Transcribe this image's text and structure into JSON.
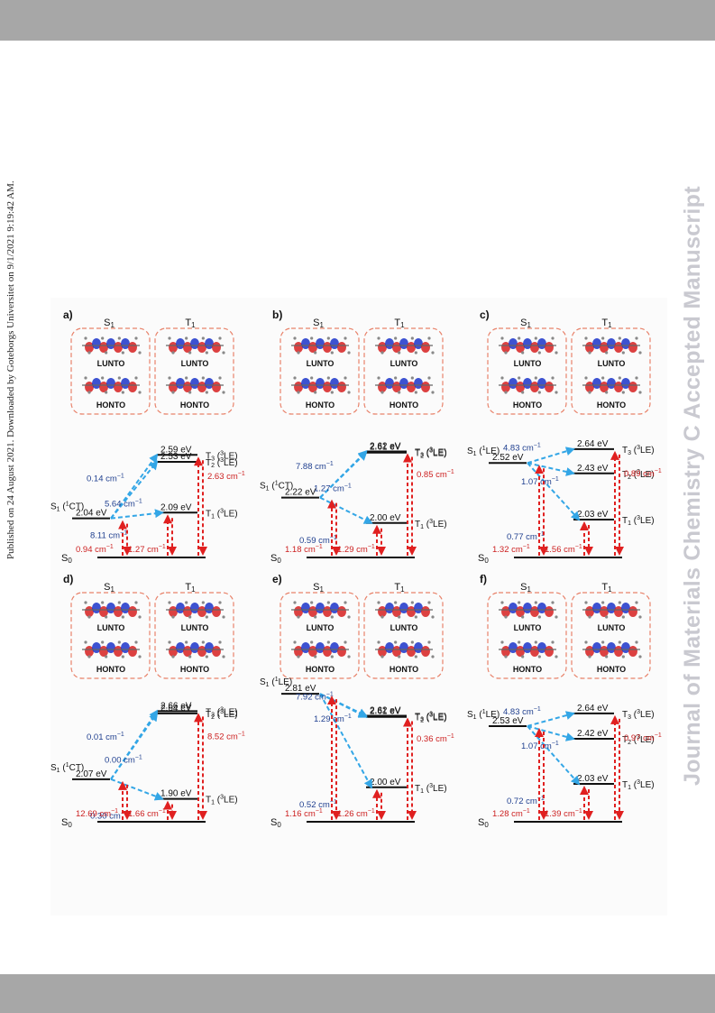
{
  "header": {
    "side_note": "Published on 24 August 2021. Downloaded by Goteborgs Universitet on 9/1/2021 9:19:42 AM."
  },
  "watermark": {
    "text": "Journal of Materials Chemistry C Accepted Manuscript"
  },
  "colors": {
    "blue": "#1f3f8f",
    "red": "#cc1f1f",
    "blue_arrow": "#33a6e6",
    "red_arrow": "#e02020",
    "box": "#e8826a"
  },
  "figure": {
    "labels": {
      "s1_header": "S1",
      "t1_header": "T1",
      "lunto": "LUNTO",
      "honto": "HONTO",
      "s0": "S0"
    },
    "panels": [
      {
        "id": "a",
        "letter": "a)",
        "s1_state": "S1 (1CT)",
        "s1_energy": "2.04 eV",
        "triplets": [
          {
            "energy": "2.09 eV",
            "label": "T1 (3LE)"
          },
          {
            "energy": "2.53 eV",
            "label": "T2 (3LE)"
          },
          {
            "energy": "2.59 eV",
            "label": "T3 (3LE)"
          }
        ],
        "soc_blue": [
          "8.11 cm-1",
          "5.64 cm-1",
          "0.14 cm-1"
        ],
        "soc_red": [
          "0.94 cm-1",
          "1.27 cm-1",
          "2.63 cm-1"
        ]
      },
      {
        "id": "b",
        "letter": "b)",
        "s1_state": "S1 (1CT)",
        "s1_energy": "2.22 eV",
        "triplets": [
          {
            "energy": "2.00 eV",
            "label": "T1 (3LE)"
          },
          {
            "energy": "2.61 eV",
            "label": "T2 (3LE)"
          },
          {
            "energy": "2.62 eV",
            "label": "T3 (3LE)"
          }
        ],
        "soc_blue": [
          "0.59 cm-1",
          "1.27 cm-1",
          "7.88 cm-1"
        ],
        "soc_red": [
          "1.18 cm-1",
          "1.29 cm-1",
          "0.85 cm-1"
        ]
      },
      {
        "id": "c",
        "letter": "c)",
        "s1_state": "S1 (1LE)",
        "s1_energy": "2.52 eV",
        "triplets": [
          {
            "energy": "2.03 eV",
            "label": "T1 (3LE)"
          },
          {
            "energy": "2.43 eV",
            "label": "T2 (3LE)"
          },
          {
            "energy": "2.64 eV",
            "label": "T3 (3LE)"
          }
        ],
        "soc_blue": [
          "0.77 cm-1",
          "1.07 cm-1",
          "4.83 cm-1"
        ],
        "soc_red": [
          "1.32 cm-1",
          "1.56 cm-1",
          "0.89 cm-1"
        ]
      },
      {
        "id": "d",
        "letter": "d)",
        "s1_state": "S1 (1CT)",
        "s1_energy": "2.07 eV",
        "triplets": [
          {
            "energy": "1.90 eV",
            "label": "T1 (3LE)"
          },
          {
            "energy": "2.64 eV",
            "label": "T2 (3LE)"
          },
          {
            "energy": "2.66 eV",
            "label": "T3 (3LE)"
          }
        ],
        "soc_blue": [
          "0.30 cm-1",
          "0.00 cm-1",
          "0.01 cm-1"
        ],
        "soc_red": [
          "12.69 cm-1",
          "1.66 cm-1",
          "8.52 cm-1"
        ]
      },
      {
        "id": "e",
        "letter": "e)",
        "s1_state": "S1 (1LE)",
        "s1_energy": "2.81 eV",
        "triplets": [
          {
            "energy": "2.00 eV",
            "label": "T1 (3LE)"
          },
          {
            "energy": "2.61 eV",
            "label": "T2 (3LE)"
          },
          {
            "energy": "2.62 eV",
            "label": "T3 (3LE)"
          }
        ],
        "soc_blue": [
          "0.52 cm-1",
          "1.29 cm-1",
          "7.92 cm-1"
        ],
        "soc_red": [
          "1.16 cm-1",
          "1.26 cm-1",
          "0.36 cm-1"
        ]
      },
      {
        "id": "f",
        "letter": "f)",
        "s1_state": "S1 (1LE)",
        "s1_energy": "2.53 eV",
        "triplets": [
          {
            "energy": "2.03 eV",
            "label": "T1 (3LE)"
          },
          {
            "energy": "2.42 eV",
            "label": "T2 (3LE)"
          },
          {
            "energy": "2.64 eV",
            "label": "T3 (3LE)"
          }
        ],
        "soc_blue": [
          "0.72 cm-1",
          "1.07 cm-1",
          "4.83 cm-1"
        ],
        "soc_red": [
          "1.28 cm-1",
          "1.39 cm-1",
          "0.97 cm-1"
        ]
      }
    ]
  }
}
